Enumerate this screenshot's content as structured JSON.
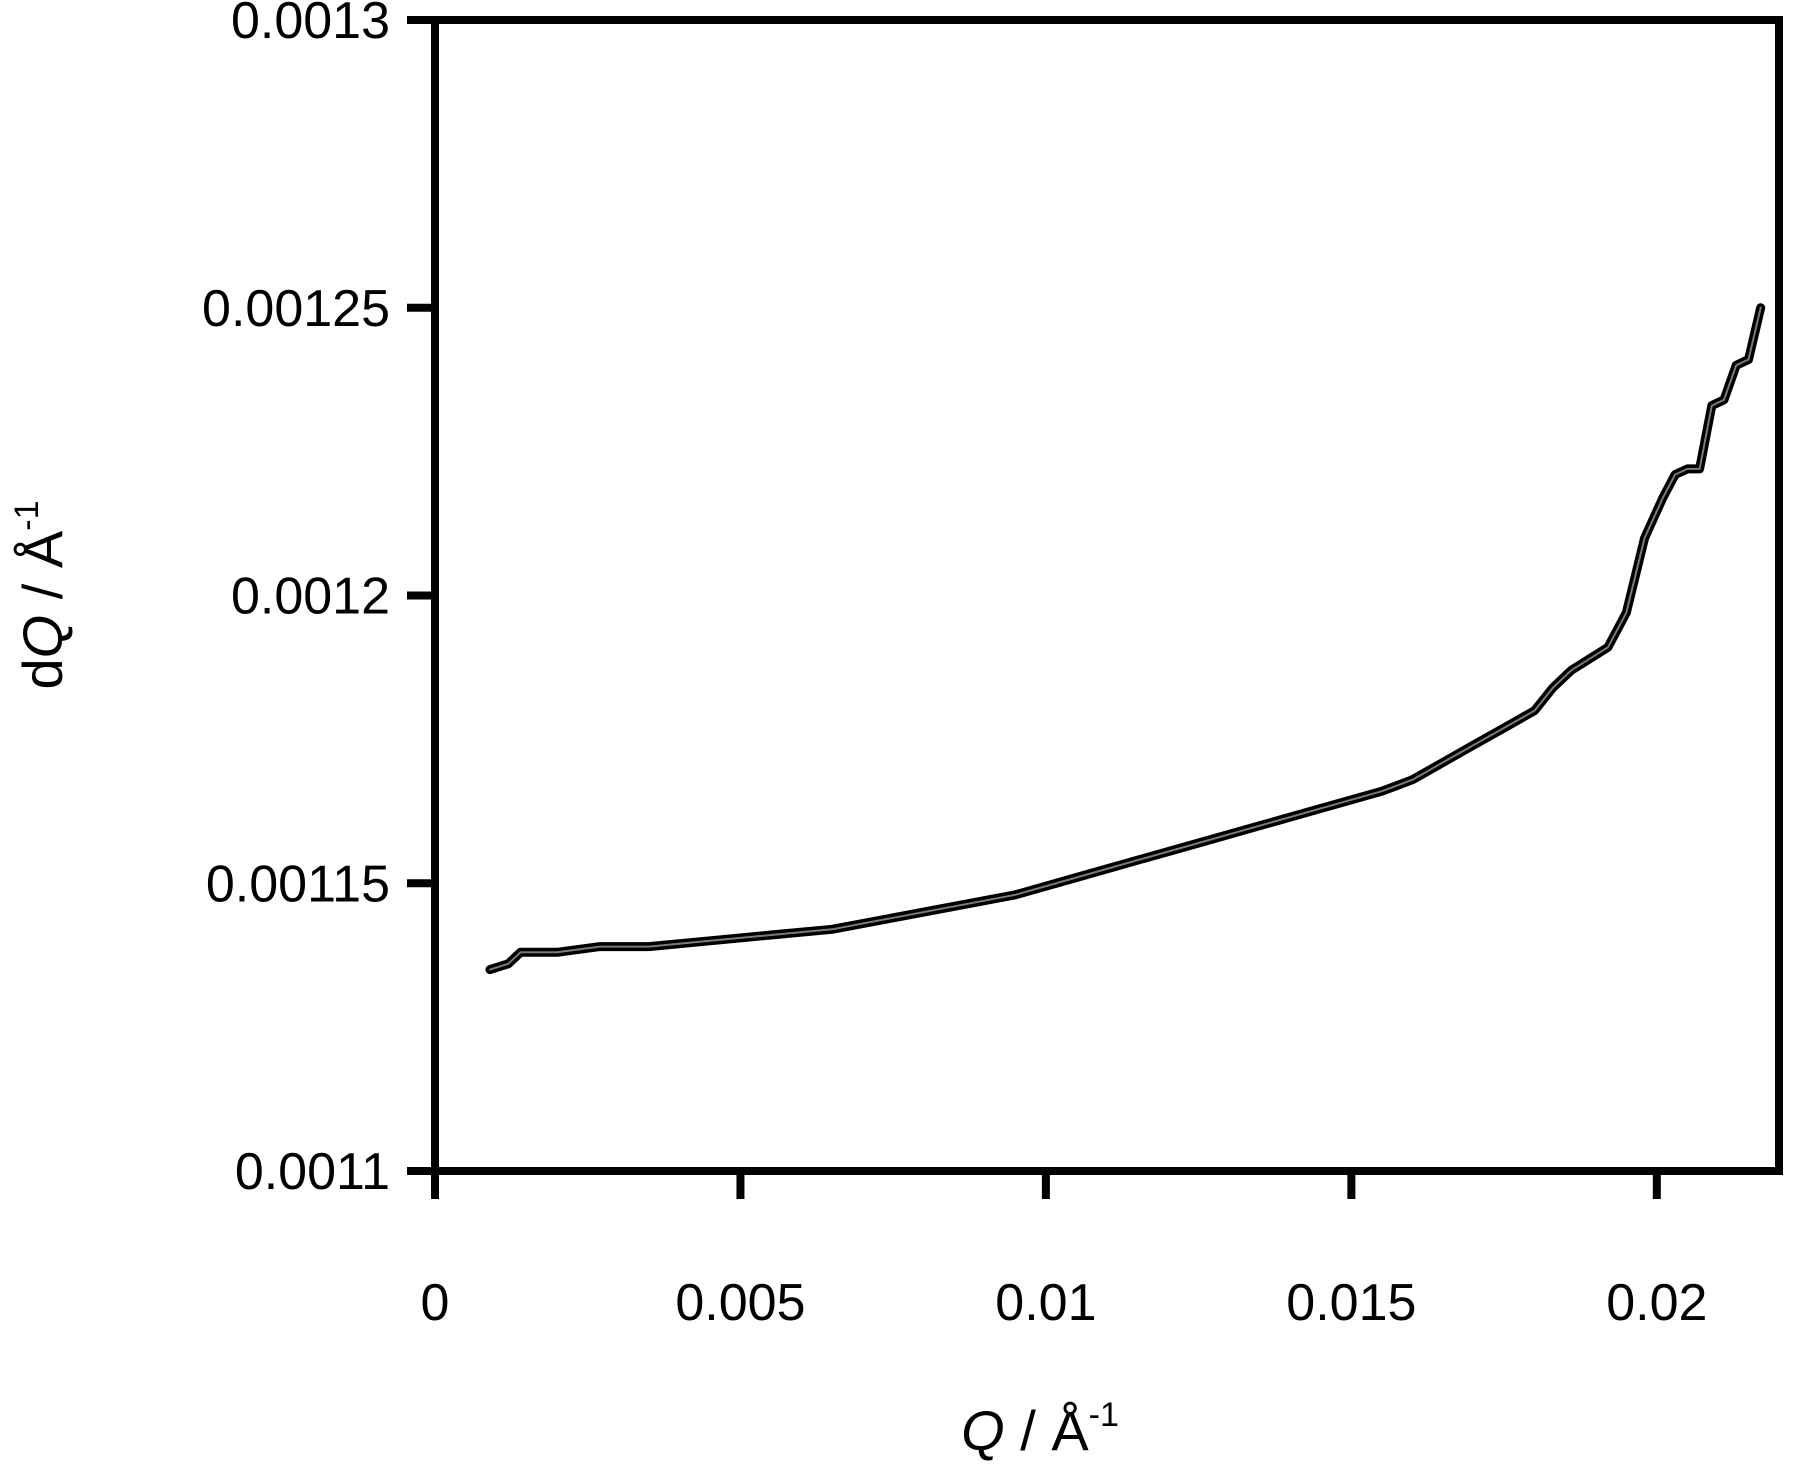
{
  "chart_data": {
    "type": "line",
    "title": "",
    "xlabel": {
      "italic": "Q",
      "rest": " / Å",
      "sup": "-1"
    },
    "ylabel": {
      "prefix": "d",
      "italic": "Q",
      "rest": " / Å",
      "sup": "-1"
    },
    "xlim": [
      0,
      0.022
    ],
    "ylim": [
      0.0011,
      0.0013
    ],
    "x_ticks": [
      0,
      0.005,
      0.01,
      0.015,
      0.02
    ],
    "x_tick_labels": [
      "0",
      "0.005",
      "0.01",
      "0.015",
      "0.02"
    ],
    "y_ticks": [
      0.0011,
      0.00115,
      0.0012,
      0.00125,
      0.0013
    ],
    "y_tick_labels": [
      "0.0011",
      "0.00115",
      "0.0012",
      "0.00125",
      "0.0013"
    ],
    "grid": false,
    "legend": "none",
    "line_color": "#000000",
    "series": [
      {
        "x": [
          0.0009,
          0.0012,
          0.0014,
          0.002,
          0.0027,
          0.0035,
          0.0045,
          0.0055,
          0.0065,
          0.0075,
          0.0085,
          0.0095,
          0.0105,
          0.0115,
          0.0125,
          0.0135,
          0.0145,
          0.0155,
          0.016,
          0.0165,
          0.017,
          0.0175,
          0.018,
          0.0183,
          0.0186,
          0.0189,
          0.0192,
          0.0195,
          0.0198,
          0.0201,
          0.0203,
          0.0205,
          0.0207,
          0.0209,
          0.0211,
          0.0213,
          0.0215,
          0.0217
        ],
        "y": [
          0.001135,
          0.001136,
          0.001138,
          0.001138,
          0.001139,
          0.001139,
          0.00114,
          0.001141,
          0.001142,
          0.001144,
          0.001146,
          0.001148,
          0.001151,
          0.001154,
          0.001157,
          0.00116,
          0.001163,
          0.001166,
          0.001168,
          0.001171,
          0.001174,
          0.001177,
          0.00118,
          0.001184,
          0.001187,
          0.001189,
          0.001191,
          0.001197,
          0.00121,
          0.001217,
          0.001221,
          0.001222,
          0.001222,
          0.001233,
          0.001234,
          0.00124,
          0.001241,
          0.00125
        ]
      }
    ]
  }
}
